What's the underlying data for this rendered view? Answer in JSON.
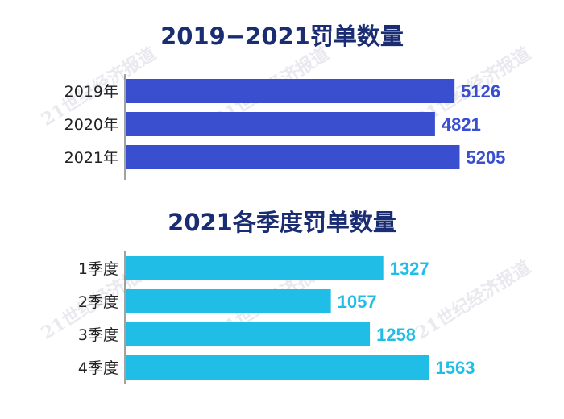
{
  "watermark": "21世纪经济报道",
  "colors": {
    "title": "#1a2d73",
    "bar_annual": "#3a4fd0",
    "bar_quarter": "#20bde6",
    "label": "#222222"
  },
  "chart_data": [
    {
      "type": "bar",
      "orientation": "horizontal",
      "title": "2019−2021罚单数量",
      "categories": [
        "2019年",
        "2020年",
        "2021年"
      ],
      "values": [
        5126,
        4821,
        5205
      ],
      "data_labels": [
        "5126",
        "4821",
        "5205"
      ],
      "color": "#3a4fd0",
      "xlim": [
        0,
        5400
      ],
      "grid": false
    },
    {
      "type": "bar",
      "orientation": "horizontal",
      "title": "2021各季度罚单数量",
      "categories": [
        "1季度",
        "2季度",
        "3季度",
        "4季度"
      ],
      "values": [
        1327,
        1057,
        1258,
        1563
      ],
      "data_labels": [
        "1327",
        "1057",
        "1258",
        "1563"
      ],
      "color": "#20bde6",
      "xlim": [
        0,
        1735
      ],
      "grid": false
    }
  ]
}
